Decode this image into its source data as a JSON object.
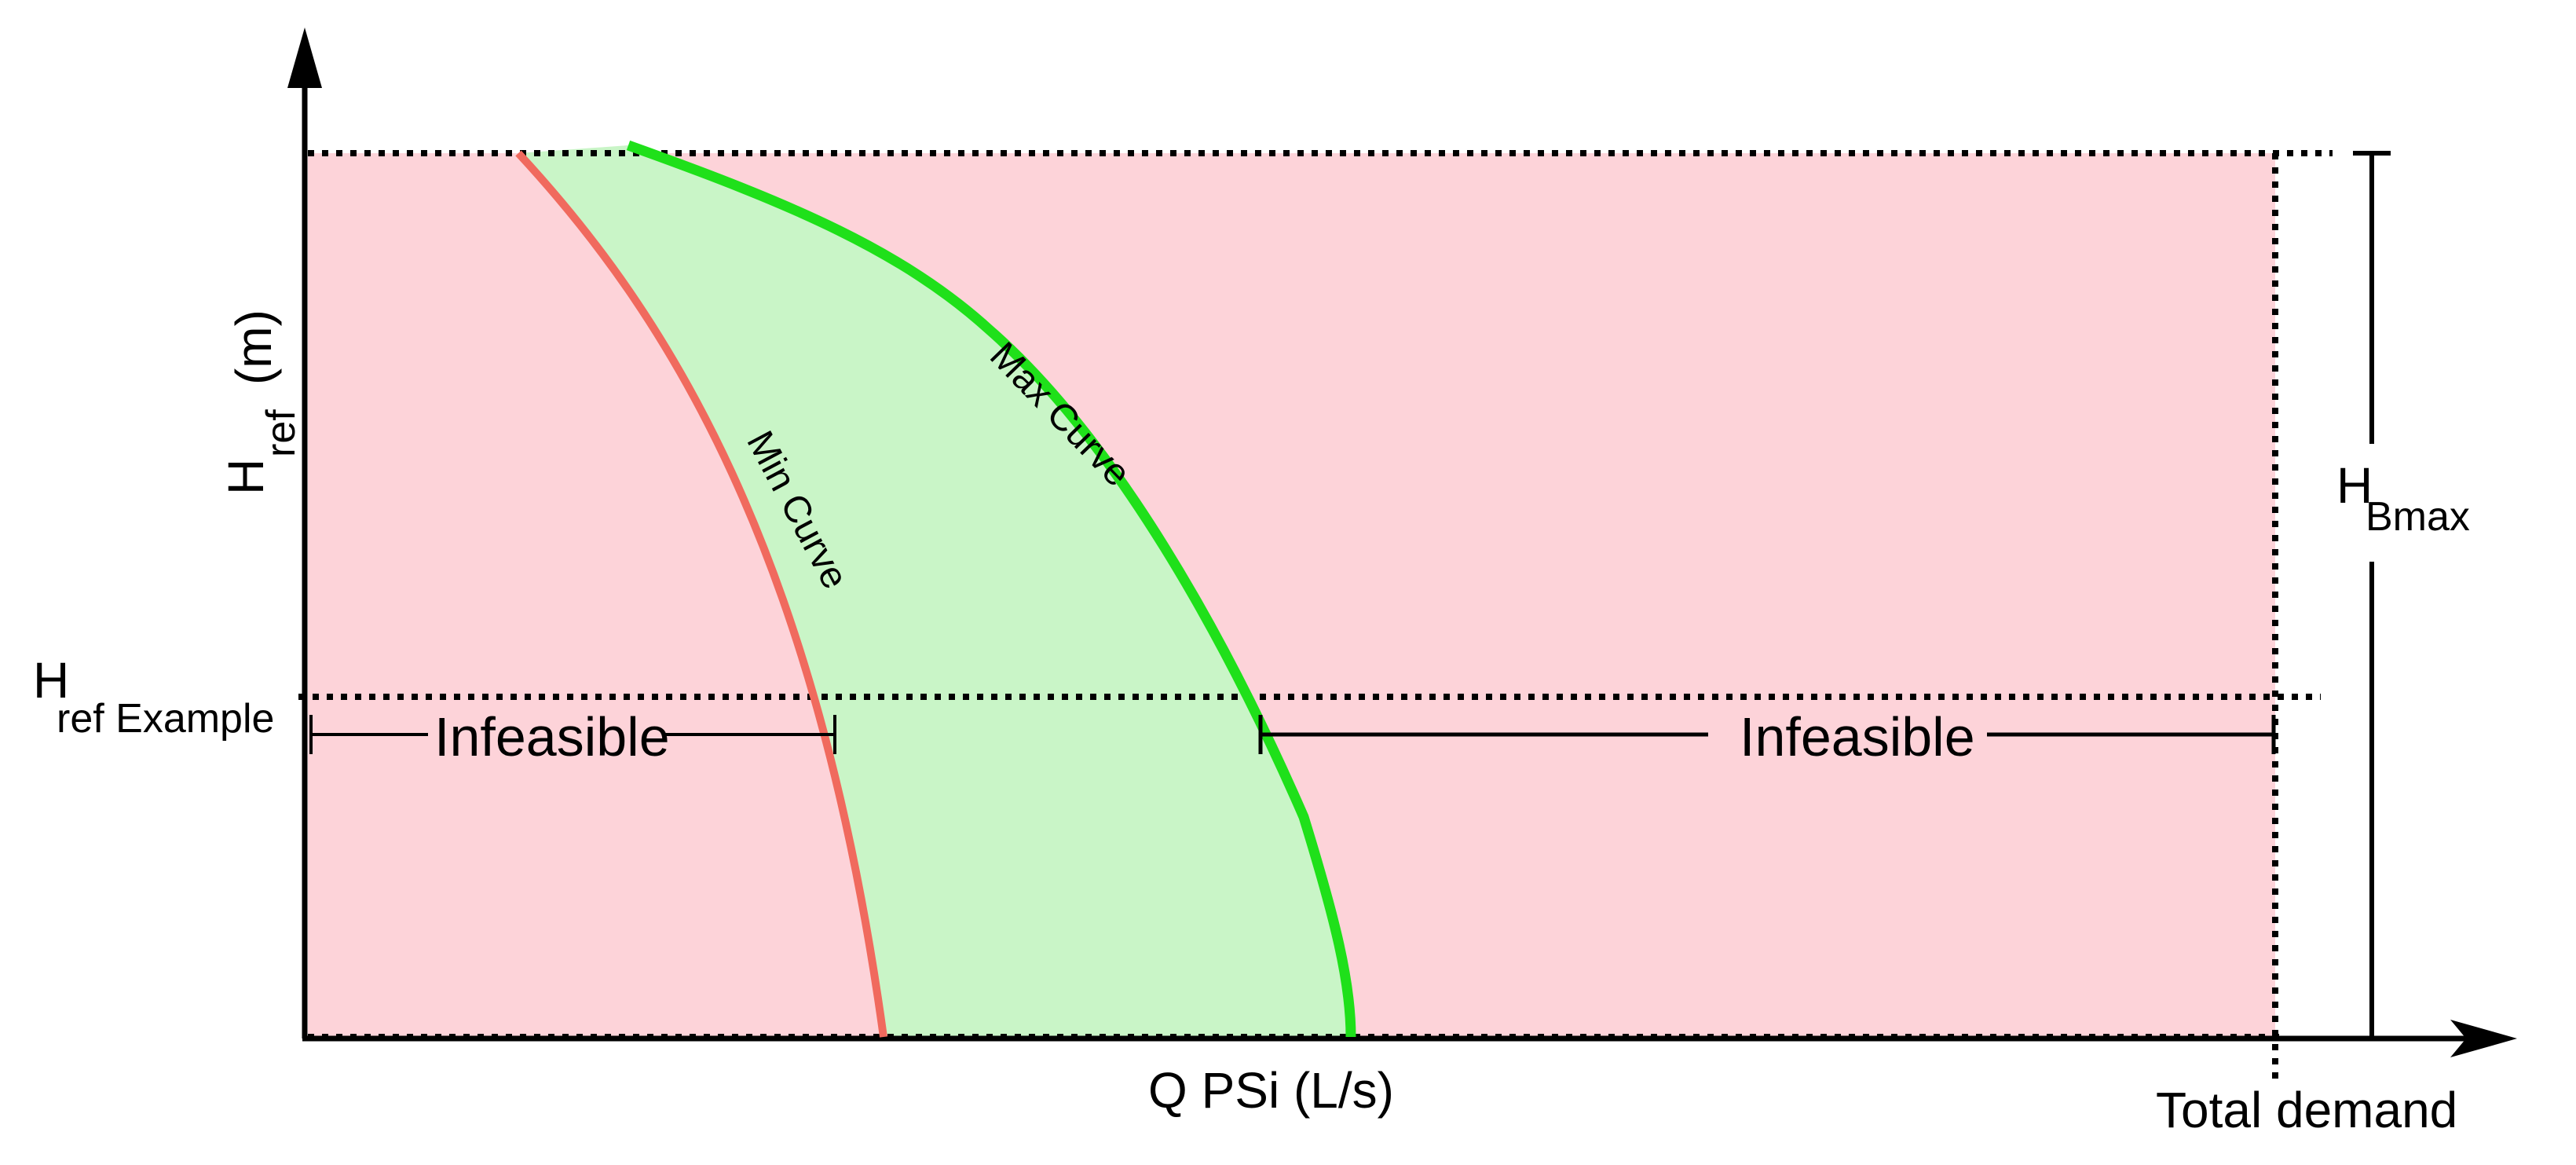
{
  "colors": {
    "infeasible_fill": "#fdd3d9",
    "feasible_fill": "#c9f5c7",
    "min_curve": "#f06a5e",
    "max_curve": "#1fe01a",
    "lines": "#000000"
  },
  "axes": {
    "y_label_main": "H",
    "y_label_sub": "ref",
    "y_label_unit": "(m)",
    "x_label": "Q PSi (L/s)",
    "x_end_label": "Total demand"
  },
  "annotations": {
    "h_bmax_main": "H",
    "h_bmax_sub": "Bmax",
    "h_ref_example_main": "H",
    "h_ref_example_sub": "ref Example",
    "infeasible_left": "Infeasible",
    "infeasible_right": "Infeasible"
  },
  "curves": {
    "min_label": "Min Curve",
    "max_label": "Max Curve"
  }
}
